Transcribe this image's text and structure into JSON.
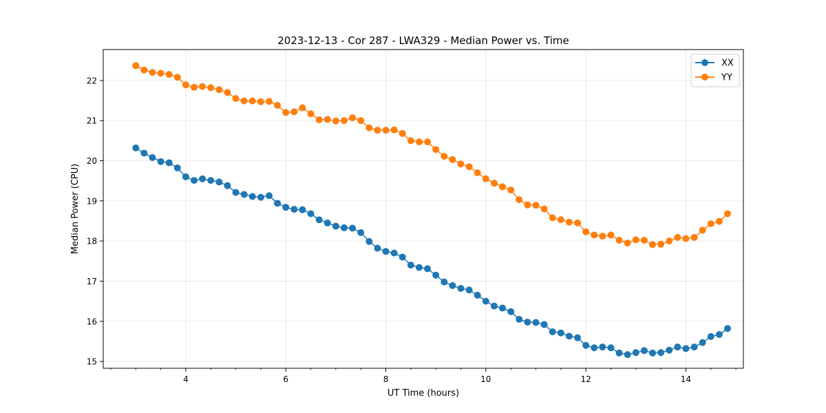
{
  "chart_data": {
    "type": "line",
    "title": "2023-12-13 - Cor 287 - LWA329 - Median Power vs. Time",
    "xlabel": "UT Time (hours)",
    "ylabel": "Median Power (CPU)",
    "xlim": [
      2.35,
      15.15
    ],
    "ylim": [
      14.83,
      22.77
    ],
    "x_ticks": [
      4,
      6,
      8,
      10,
      12,
      14
    ],
    "x_tick_labels": [
      "4",
      "6",
      "8",
      "10",
      "12",
      "14"
    ],
    "x_minor_step": 0.5,
    "y_ticks": [
      15,
      16,
      17,
      18,
      19,
      20,
      21,
      22
    ],
    "y_tick_labels": [
      "15",
      "16",
      "17",
      "18",
      "19",
      "20",
      "21",
      "22"
    ],
    "grid": true,
    "legend_position": "top-right",
    "series": [
      {
        "name": "XX",
        "color": "#1f77b4",
        "x": [
          3.0,
          3.167,
          3.333,
          3.5,
          3.667,
          3.833,
          4.0,
          4.167,
          4.333,
          4.5,
          4.667,
          4.833,
          5.0,
          5.167,
          5.333,
          5.5,
          5.667,
          5.833,
          6.0,
          6.167,
          6.333,
          6.5,
          6.667,
          6.833,
          7.0,
          7.167,
          7.333,
          7.5,
          7.667,
          7.833,
          8.0,
          8.167,
          8.333,
          8.5,
          8.667,
          8.833,
          9.0,
          9.167,
          9.333,
          9.5,
          9.667,
          9.833,
          10.0,
          10.167,
          10.333,
          10.5,
          10.667,
          10.833,
          11.0,
          11.167,
          11.333,
          11.5,
          11.667,
          11.833,
          12.0,
          12.167,
          12.333,
          12.5,
          12.667,
          12.833,
          13.0,
          13.167,
          13.333,
          13.5,
          13.667,
          13.833,
          14.0,
          14.167,
          14.333,
          14.5,
          14.667,
          14.833
        ],
        "values": [
          20.32,
          20.19,
          20.08,
          19.98,
          19.95,
          19.82,
          19.6,
          19.51,
          19.55,
          19.51,
          19.47,
          19.38,
          19.21,
          19.16,
          19.11,
          19.09,
          19.13,
          18.94,
          18.84,
          18.79,
          18.78,
          18.68,
          18.53,
          18.45,
          18.37,
          18.33,
          18.32,
          18.21,
          17.99,
          17.82,
          17.74,
          17.7,
          17.6,
          17.4,
          17.34,
          17.31,
          17.15,
          16.98,
          16.89,
          16.82,
          16.78,
          16.65,
          16.5,
          16.38,
          16.33,
          16.24,
          16.05,
          15.98,
          15.97,
          15.92,
          15.74,
          15.71,
          15.63,
          15.59,
          15.4,
          15.34,
          15.36,
          15.34,
          15.21,
          15.17,
          15.22,
          15.27,
          15.21,
          15.22,
          15.28,
          15.36,
          15.32,
          15.36,
          15.47,
          15.62,
          15.67,
          15.82
        ]
      },
      {
        "name": "YY",
        "color": "#ff7f0e",
        "x": [
          3.0,
          3.167,
          3.333,
          3.5,
          3.667,
          3.833,
          4.0,
          4.167,
          4.333,
          4.5,
          4.667,
          4.833,
          5.0,
          5.167,
          5.333,
          5.5,
          5.667,
          5.833,
          6.0,
          6.167,
          6.333,
          6.5,
          6.667,
          6.833,
          7.0,
          7.167,
          7.333,
          7.5,
          7.667,
          7.833,
          8.0,
          8.167,
          8.333,
          8.5,
          8.667,
          8.833,
          9.0,
          9.167,
          9.333,
          9.5,
          9.667,
          9.833,
          10.0,
          10.167,
          10.333,
          10.5,
          10.667,
          10.833,
          11.0,
          11.167,
          11.333,
          11.5,
          11.667,
          11.833,
          12.0,
          12.167,
          12.333,
          12.5,
          12.667,
          12.833,
          13.0,
          13.167,
          13.333,
          13.5,
          13.667,
          13.833,
          14.0,
          14.167,
          14.333,
          14.5,
          14.667,
          14.833
        ],
        "values": [
          22.37,
          22.26,
          22.2,
          22.18,
          22.15,
          22.08,
          21.89,
          21.83,
          21.85,
          21.82,
          21.77,
          21.7,
          21.55,
          21.49,
          21.49,
          21.47,
          21.48,
          21.38,
          21.2,
          21.22,
          21.32,
          21.17,
          21.02,
          21.03,
          20.99,
          21.0,
          21.07,
          21.0,
          20.82,
          20.76,
          20.76,
          20.77,
          20.68,
          20.5,
          20.47,
          20.47,
          20.28,
          20.11,
          20.03,
          19.92,
          19.85,
          19.7,
          19.55,
          19.44,
          19.35,
          19.27,
          19.03,
          18.9,
          18.89,
          18.8,
          18.58,
          18.53,
          18.47,
          18.45,
          18.23,
          18.15,
          18.12,
          18.15,
          18.02,
          17.95,
          18.03,
          18.02,
          17.91,
          17.92,
          18.0,
          18.09,
          18.06,
          18.09,
          18.27,
          18.43,
          18.49,
          18.68
        ]
      }
    ]
  }
}
